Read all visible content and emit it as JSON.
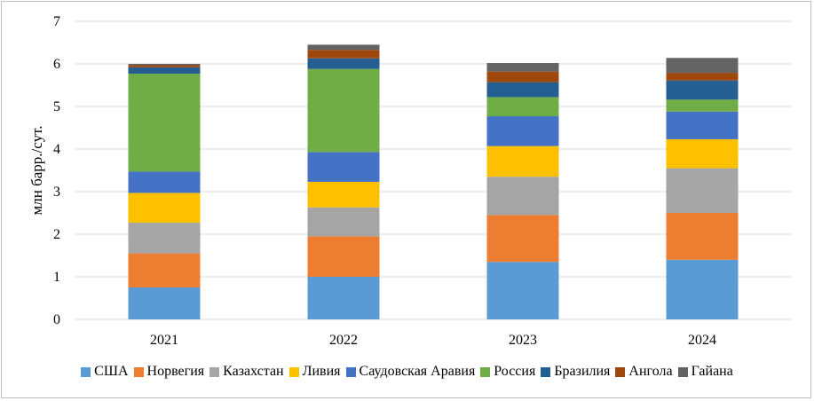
{
  "chart_data": {
    "type": "bar",
    "stacked": true,
    "title": "",
    "xlabel": "",
    "ylabel": "млн барр./сут.",
    "ylim": [
      0,
      7
    ],
    "yticks": [
      0,
      1,
      2,
      3,
      4,
      5,
      6,
      7
    ],
    "grid": true,
    "legend_position": "bottom",
    "categories": [
      "2021",
      "2022",
      "2023",
      "2024"
    ],
    "series": [
      {
        "name": "США",
        "color": "#5b9bd5",
        "values": [
          0.75,
          1.0,
          1.35,
          1.4
        ]
      },
      {
        "name": "Норвегия",
        "color": "#ed7d31",
        "values": [
          0.8,
          0.95,
          1.1,
          1.1
        ]
      },
      {
        "name": "Казахстан",
        "color": "#a5a5a5",
        "values": [
          0.72,
          0.68,
          0.9,
          1.05
        ]
      },
      {
        "name": "Ливия",
        "color": "#ffc000",
        "values": [
          0.7,
          0.6,
          0.72,
          0.68
        ]
      },
      {
        "name": "Саудовская Аравия",
        "color": "#4472c4",
        "values": [
          0.5,
          0.7,
          0.7,
          0.65
        ]
      },
      {
        "name": "Россия",
        "color": "#70ad47",
        "values": [
          2.3,
          1.95,
          0.45,
          0.28
        ]
      },
      {
        "name": "Бразилия",
        "color": "#255e91",
        "values": [
          0.15,
          0.25,
          0.35,
          0.45
        ]
      },
      {
        "name": "Ангола",
        "color": "#9e480e",
        "values": [
          0.05,
          0.2,
          0.25,
          0.18
        ]
      },
      {
        "name": "Гайана",
        "color": "#636363",
        "values": [
          0.03,
          0.12,
          0.2,
          0.35
        ]
      }
    ]
  }
}
